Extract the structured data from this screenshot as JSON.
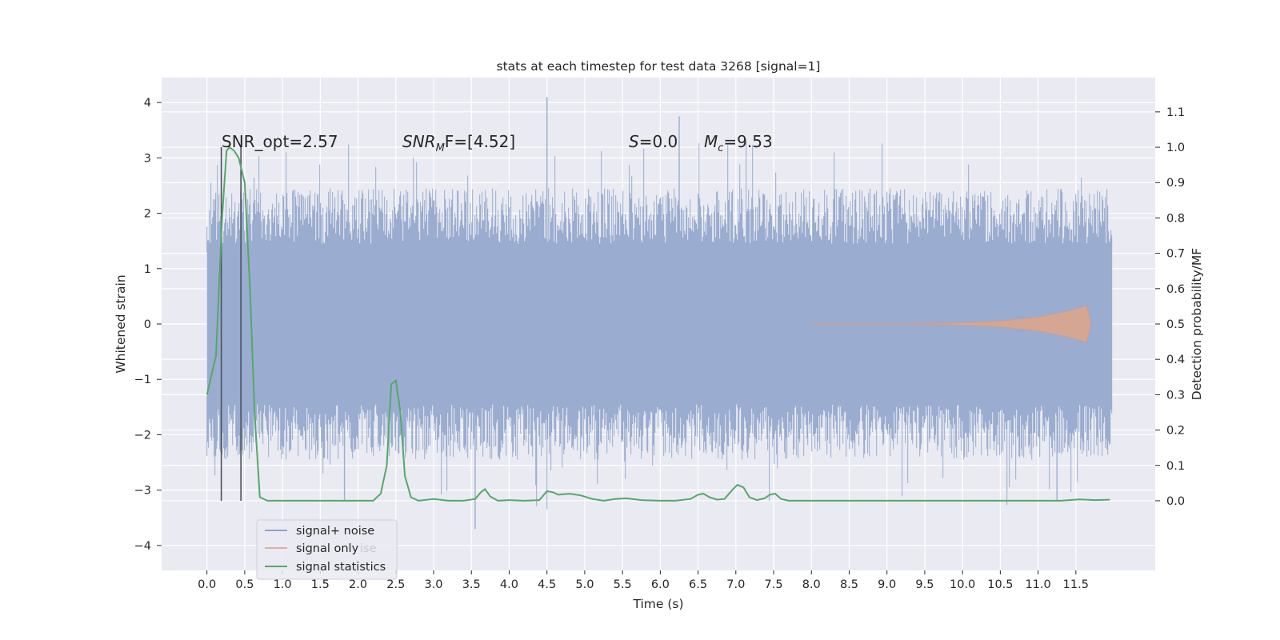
{
  "chart_data": {
    "type": "line",
    "title": "stats at each timestep for test data 3268 [signal=1]",
    "xlabel": "Time (s)",
    "ylabel_left": "Whitened strain",
    "ylabel_right": "Detection probability/MF",
    "xlim": [
      -0.6,
      12.55
    ],
    "ylim_left": [
      -4.45,
      4.45
    ],
    "ylim_right": [
      -0.197,
      1.197
    ],
    "x_ticks": [
      0.0,
      0.5,
      1.0,
      1.5,
      2.0,
      2.5,
      3.0,
      3.5,
      4.0,
      4.5,
      5.0,
      5.5,
      6.0,
      6.5,
      7.0,
      7.5,
      8.0,
      8.5,
      9.0,
      9.5,
      10.0,
      10.5,
      11.0,
      11.5
    ],
    "x_tick_labels": [
      "0.0",
      "0.5",
      "1.0",
      "1.5",
      "2.0",
      "2.5",
      "3.0",
      "3.5",
      "4.0",
      "4.5",
      "5.0",
      "5.5",
      "6.0",
      "6.5",
      "7.0",
      "7.5",
      "8.0",
      "8.5",
      "9.0",
      "9.5",
      "10.0",
      "10.5",
      "11.0",
      "11.5"
    ],
    "y_left_ticks": [
      4,
      3,
      2,
      1,
      0,
      -1,
      -2,
      -3,
      -4
    ],
    "y_left_tick_labels": [
      "4",
      "3",
      "2",
      "1",
      "0",
      "−1",
      "−2",
      "−3",
      "−4"
    ],
    "y_right_ticks": [
      1.1,
      1.0,
      0.9,
      0.8,
      0.7,
      0.6,
      0.5,
      0.4,
      0.3,
      0.2,
      0.1,
      0.0
    ],
    "y_right_tick_labels": [
      "1.1",
      "1.0",
      "0.9",
      "0.8",
      "0.7",
      "0.6",
      "0.5",
      "0.4",
      "0.3",
      "0.2",
      "0.1",
      "0.0"
    ],
    "grid": true,
    "legend_position": "lower-left",
    "legend": [
      {
        "label": "signal+ noise",
        "color": "#4c72b0"
      },
      {
        "label": "signal only",
        "color": "#dd8452"
      },
      {
        "label": "signal statistics",
        "color": "#55a868"
      }
    ],
    "legend_ghost_text": "ise",
    "annotations": {
      "snr_opt": "SNR_opt=2.57",
      "snr_mf_symbol": "SNR",
      "snr_mf_sub": "M",
      "snr_mf_tail": "F=[4.52]",
      "s_symbol": "S",
      "s_tail": "=0.0",
      "mc_symbol": "M",
      "mc_sub": "c",
      "mc_tail": "=9.53"
    },
    "vertical_markers_x": [
      0.19,
      0.45
    ],
    "noise": {
      "x_range": [
        0.0,
        11.98
      ],
      "band_inner": 1.3,
      "envelope": 2.3,
      "spike_max": 4.1,
      "spike_min": -3.7
    },
    "signal_only": {
      "x_start": 8.0,
      "x_peak": 11.65,
      "amplitude_peak": 0.33
    },
    "series": [
      {
        "name": "signal statistics",
        "axis": "right",
        "color": "#55a868",
        "x": [
          0.0,
          0.12,
          0.2,
          0.26,
          0.3,
          0.36,
          0.42,
          0.5,
          0.57,
          0.63,
          0.7,
          0.8,
          1.0,
          1.5,
          2.0,
          2.2,
          2.3,
          2.38,
          2.44,
          2.5,
          2.56,
          2.62,
          2.7,
          2.8,
          3.0,
          3.2,
          3.4,
          3.55,
          3.63,
          3.68,
          3.75,
          3.85,
          4.0,
          4.2,
          4.4,
          4.5,
          4.58,
          4.65,
          4.8,
          4.95,
          5.1,
          5.25,
          5.4,
          5.55,
          5.75,
          6.0,
          6.2,
          6.4,
          6.5,
          6.57,
          6.65,
          6.75,
          6.85,
          6.95,
          7.02,
          7.1,
          7.18,
          7.28,
          7.38,
          7.45,
          7.52,
          7.6,
          7.7,
          7.85,
          8.2,
          9.0,
          10.0,
          11.0,
          11.3,
          11.55,
          11.75,
          11.95
        ],
        "values": [
          0.3,
          0.41,
          0.8,
          0.99,
          1.0,
          0.99,
          0.97,
          0.9,
          0.6,
          0.25,
          0.01,
          0.0,
          0.0,
          0.0,
          0.0,
          0.0,
          0.02,
          0.1,
          0.33,
          0.34,
          0.25,
          0.07,
          0.01,
          0.0,
          0.005,
          0.0,
          0.0,
          0.005,
          0.025,
          0.033,
          0.012,
          0.0,
          0.002,
          0.0,
          0.002,
          0.027,
          0.024,
          0.017,
          0.02,
          0.015,
          0.005,
          0.0,
          0.005,
          0.007,
          0.002,
          0.0,
          0.0,
          0.005,
          0.017,
          0.02,
          0.01,
          0.003,
          0.005,
          0.03,
          0.045,
          0.038,
          0.01,
          0.002,
          0.007,
          0.017,
          0.02,
          0.005,
          0.0,
          0.0,
          0.0,
          0.0,
          0.0,
          0.0,
          0.0,
          0.004,
          0.002,
          0.003
        ]
      }
    ]
  }
}
